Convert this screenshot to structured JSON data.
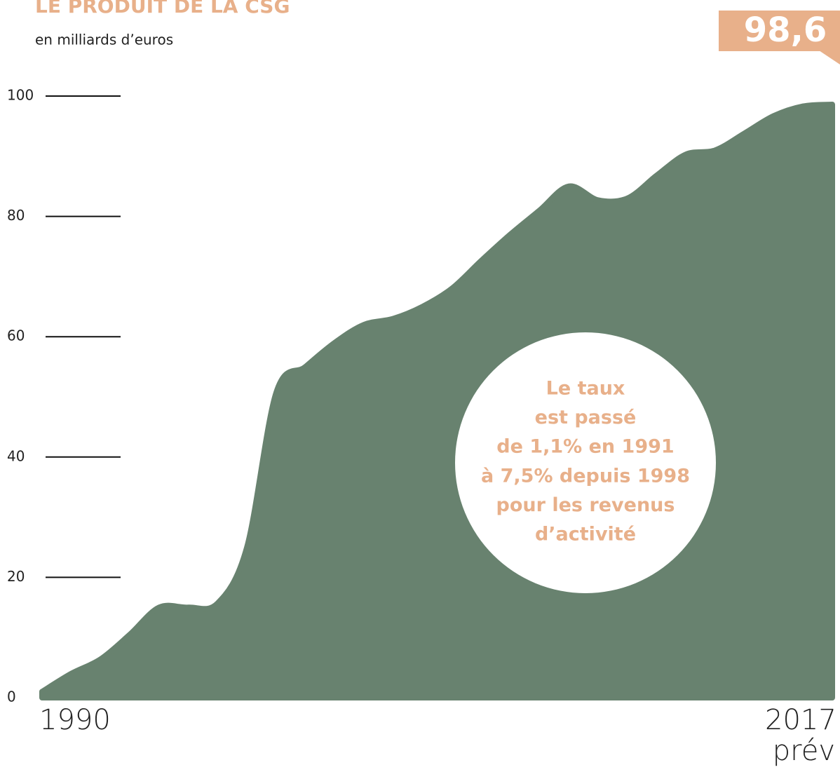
{
  "chart_data": {
    "type": "area",
    "title": "LE PRODUIT DE LA CSG",
    "subtitle": "en milliards d’euros",
    "categories": [
      "1990",
      null,
      null,
      null,
      null,
      null,
      null,
      null,
      null,
      null,
      null,
      null,
      null,
      null,
      null,
      null,
      null,
      null,
      null,
      null,
      null,
      null,
      null,
      null,
      null,
      null,
      null,
      "2017 prév"
    ],
    "values": [
      1,
      4,
      6.4,
      10.5,
      15,
      15,
      15.7,
      25,
      50.7,
      55,
      59,
      62,
      63,
      65,
      68,
      72.6,
      77,
      81,
      85,
      82.7,
      83,
      86.8,
      90.3,
      91,
      93.8,
      96.7,
      98.3,
      98.6
    ],
    "value_labels": [
      null,
      null,
      null,
      null,
      null,
      null,
      null,
      null,
      null,
      null,
      null,
      null,
      null,
      null,
      null,
      null,
      null,
      null,
      null,
      null,
      null,
      null,
      null,
      null,
      null,
      null,
      null,
      "98,6"
    ],
    "color": "#68826f",
    "label_color": "#e8b08a",
    "ylim": [
      0,
      100
    ],
    "yticks": [
      0,
      20,
      40,
      60,
      80,
      100
    ],
    "annotation": [
      "Le taux",
      "est passé",
      "de 1,1% en 1991",
      "à 7,5% depuis 1998",
      "pour les revenus",
      "d’activité"
    ]
  }
}
